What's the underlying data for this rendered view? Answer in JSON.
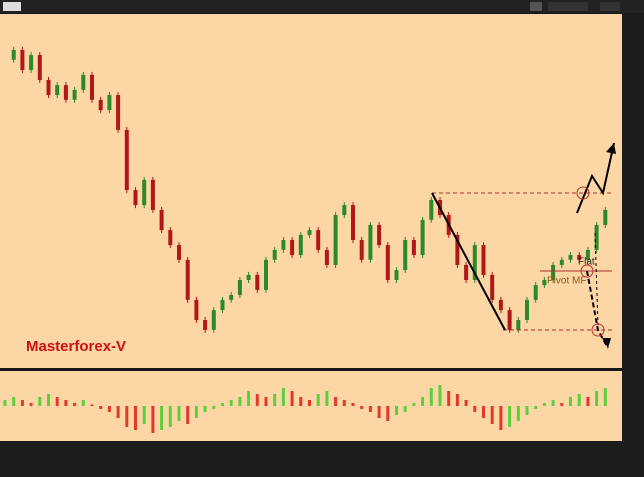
{
  "chart_data": [
    {
      "type": "candlestick",
      "title": "Masterforex-V",
      "annotations": [
        "Flat",
        "Pivot MF"
      ],
      "closes": [
        93.8,
        96.9,
        90.6,
        95.3,
        87.5,
        82.8,
        85.9,
        81.3,
        84.4,
        89.1,
        81.3,
        78.1,
        82.8,
        71.9,
        53.1,
        48.4,
        56.3,
        46.9,
        40.6,
        35.9,
        31.3,
        18.8,
        12.5,
        9.4,
        15.6,
        18.8,
        20.3,
        25,
        26.6,
        21.9,
        31.3,
        34.4,
        37.5,
        32.8,
        39.1,
        40.6,
        34.4,
        29.7,
        45.3,
        48.4,
        37.5,
        31.3,
        42.2,
        35.9,
        25,
        28.1,
        37.5,
        32.8,
        43.8,
        50,
        45.3,
        39.1,
        29.7,
        25,
        35.9,
        26.6,
        18.8,
        15.6,
        9.4,
        12.5,
        18.8,
        23.4,
        25,
        29.7,
        31.3,
        32.8,
        31.3,
        34.4,
        42.2,
        46.9
      ],
      "up_color": "#2a8a2a",
      "down_color": "#b01818",
      "ylim": [
        0,
        100
      ]
    },
    {
      "type": "histogram-oscillator",
      "values": [
        2,
        3,
        2,
        1,
        3,
        4,
        3,
        2,
        1,
        2,
        0.5,
        -1,
        -2,
        -4,
        -7,
        -8,
        -6,
        -9,
        -8,
        -7,
        -5,
        -6,
        -4,
        -2,
        -1,
        1,
        2,
        3,
        5,
        4,
        3,
        4,
        6,
        5,
        3,
        2,
        4,
        5,
        3,
        2,
        1,
        -1,
        -2,
        -4,
        -5,
        -3,
        -2,
        1,
        3,
        6,
        7,
        5,
        4,
        2,
        -2,
        -4,
        -6,
        -8,
        -7,
        -5,
        -3,
        -1,
        1,
        2,
        1,
        3,
        4,
        3,
        5,
        6
      ],
      "rise_color": "#5ccf3c",
      "fall_color": "#e23a2a",
      "ylim": [
        -10,
        10
      ]
    }
  ]
}
